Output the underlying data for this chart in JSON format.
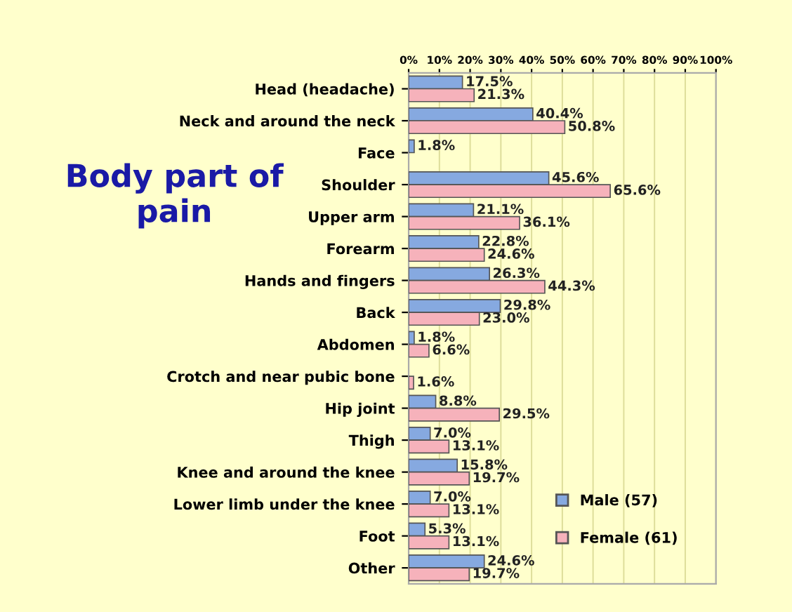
{
  "chart_data": {
    "type": "bar",
    "orientation": "horizontal",
    "title": "Body part of pain",
    "categories": [
      "Head (headache)",
      "Neck and around the neck",
      "Face",
      "Shoulder",
      "Upper arm",
      "Forearm",
      "Hands and fingers",
      "Back",
      "Abdomen",
      "Crotch and near pubic bone",
      "Hip joint",
      "Thigh",
      "Knee and around the knee",
      "Lower limb under the knee",
      "Foot",
      "Other"
    ],
    "series": [
      {
        "name": "Male (57)",
        "color": "#86a9e0",
        "values": [
          17.5,
          40.4,
          1.8,
          45.6,
          21.1,
          22.8,
          26.3,
          29.8,
          1.8,
          null,
          8.8,
          7.0,
          15.8,
          7.0,
          5.3,
          24.6
        ],
        "value_labels": [
          "17.5%",
          "40.4%",
          "1.8%",
          "45.6%",
          "21.1%",
          "22.8%",
          "26.3%",
          "29.8%",
          "1.8%",
          null,
          "8.8%",
          "7.0%",
          "15.8%",
          "7.0%",
          "5.3%",
          "24.6%"
        ]
      },
      {
        "name": "Female (61)",
        "color": "#f6b2bb",
        "values": [
          21.3,
          50.8,
          null,
          65.6,
          36.1,
          24.6,
          44.3,
          23.0,
          6.6,
          1.6,
          29.5,
          13.1,
          19.7,
          13.1,
          13.1,
          19.7
        ],
        "value_labels": [
          "21.3%",
          "50.8%",
          null,
          "65.6%",
          "36.1%",
          "24.6%",
          "44.3%",
          "23.0%",
          "6.6%",
          "1.6%",
          "29.5%",
          "13.1%",
          "19.7%",
          "13.1%",
          "13.1%",
          "19.7%"
        ]
      }
    ],
    "xlim": [
      0,
      100
    ],
    "xticks": [
      {
        "value": 0,
        "label": "0%"
      },
      {
        "value": 10,
        "label": "10%"
      },
      {
        "value": 20,
        "label": "20%"
      },
      {
        "value": 30,
        "label": "30%"
      },
      {
        "value": 40,
        "label": "40%"
      },
      {
        "value": 50,
        "label": "50%"
      },
      {
        "value": 60,
        "label": "60%"
      },
      {
        "value": 70,
        "label": "70%"
      },
      {
        "value": 80,
        "label": "80%"
      },
      {
        "value": 90,
        "label": "90%"
      },
      {
        "value": 100,
        "label": "100%"
      }
    ],
    "grid": "x",
    "legend": "bottom right"
  }
}
